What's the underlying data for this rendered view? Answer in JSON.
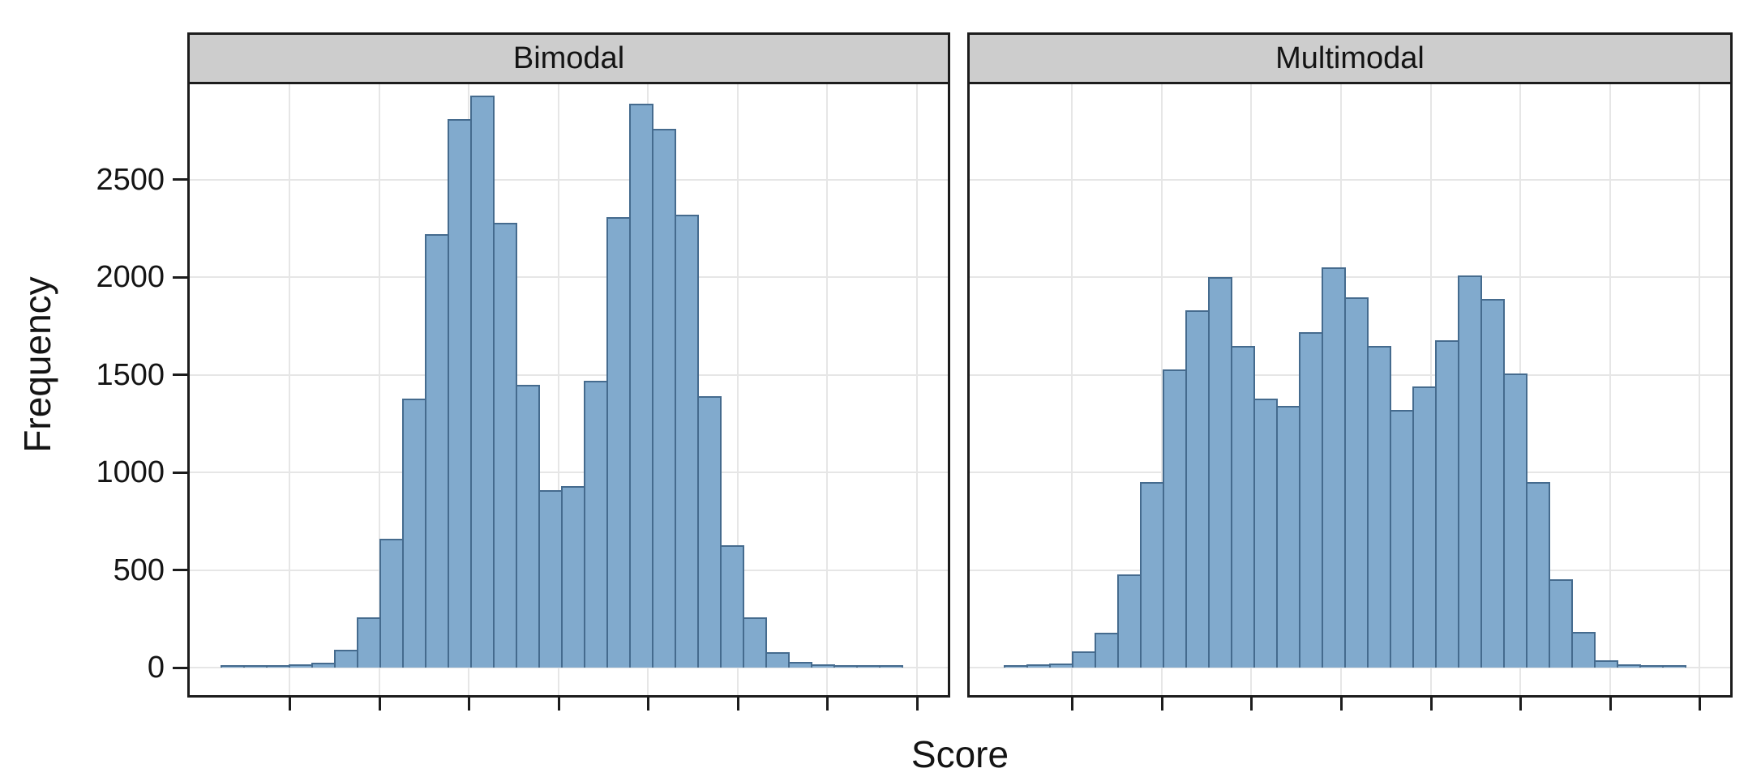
{
  "chart_data": {
    "type": "bar",
    "subtype": "faceted-histogram",
    "title": "",
    "xlabel": "Score",
    "ylabel": "Frequency",
    "y_ticks": [
      0,
      500,
      1000,
      1500,
      2000,
      2500
    ],
    "ylim": [
      0,
      3000
    ],
    "x_tick_labels_shown": false,
    "x_ticks_per_panel": 8,
    "grid": true,
    "legend": "none",
    "facets": [
      {
        "label": "Bimodal",
        "values": [
          5,
          5,
          5,
          8,
          15,
          85,
          250,
          650,
          1370,
          2210,
          2800,
          2920,
          2270,
          1440,
          900,
          920,
          1460,
          2300,
          2880,
          2750,
          2310,
          1380,
          620,
          250,
          70,
          20,
          8,
          5,
          5,
          5
        ]
      },
      {
        "label": "Multimodal",
        "values": [
          5,
          8,
          12,
          75,
          170,
          470,
          940,
          1520,
          1820,
          1990,
          1640,
          1370,
          1330,
          1710,
          2040,
          1890,
          1640,
          1310,
          1430,
          1670,
          2000,
          1880,
          1500,
          940,
          445,
          175,
          30,
          10,
          5,
          5
        ]
      }
    ],
    "colors": {
      "bar_fill": "#81AACD",
      "bar_stroke": "#456B8E",
      "strip_bg": "#CDCDCD",
      "panel_border": "#1C1C1C",
      "gridline": "#E6E6E6",
      "text": "#141414"
    }
  }
}
